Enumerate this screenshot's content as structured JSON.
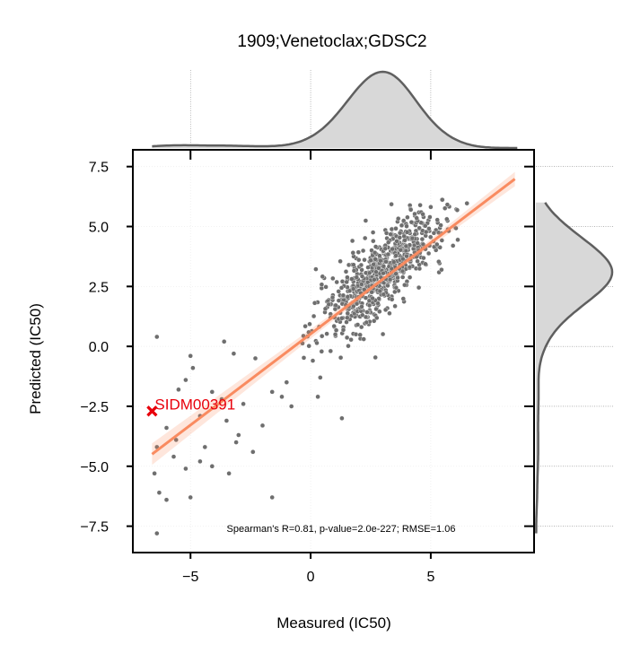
{
  "chart_data": {
    "type": "scatter",
    "title": "1909;Venetoclax;GDSC2",
    "xlabel": "Measured (IC50)",
    "ylabel": "Predicted (IC50)",
    "xlim": [
      -7.4,
      9.3
    ],
    "ylim": [
      -8.6,
      8.2
    ],
    "x_ticks": [
      -5,
      0,
      5
    ],
    "x_tick_labels": [
      "−5",
      "0",
      "5"
    ],
    "y_ticks": [
      7.5,
      5.0,
      2.5,
      0.0,
      -2.5,
      -5.0,
      -7.5
    ],
    "y_tick_labels": [
      "7.5",
      "5.0",
      "2.5",
      "0.0",
      "−2.5",
      "−5.0",
      "−7.5"
    ],
    "grid": true,
    "annotation": "Spearman's R=0.81, p-value=2.0e-227; RMSE=1.06",
    "regression": {
      "slope": 0.76,
      "intercept": 0.52,
      "x_range": [
        -6.6,
        8.5
      ],
      "color": "#f98b60"
    },
    "highlight": {
      "label": "SIDM00391",
      "x": -6.6,
      "y": -2.7,
      "color": "#e8000b"
    },
    "point_color": "#6e6e6e",
    "density_color": "#5f5f5f",
    "density_fill": "#d8d8d8",
    "outlier_points": [
      [
        -6.4,
        0.4
      ],
      [
        -5.0,
        -0.4
      ],
      [
        -4.9,
        -0.9
      ],
      [
        -3.6,
        0.2
      ],
      [
        -3.2,
        -0.3
      ],
      [
        -2.3,
        -0.5
      ],
      [
        -5.2,
        -1.4
      ],
      [
        -5.5,
        -1.8
      ],
      [
        -4.1,
        -1.9
      ],
      [
        -3.7,
        -2.2
      ],
      [
        -2.8,
        -2.4
      ],
      [
        -1.6,
        -1.9
      ],
      [
        -1.2,
        -2.1
      ],
      [
        -0.8,
        -2.5
      ],
      [
        -4.6,
        -2.9
      ],
      [
        -3.5,
        -3.1
      ],
      [
        -2.0,
        -3.3
      ],
      [
        -6.0,
        -3.4
      ],
      [
        -5.6,
        -3.9
      ],
      [
        -4.4,
        -4.2
      ],
      [
        -3.1,
        -4.0
      ],
      [
        -6.4,
        -4.2
      ],
      [
        -5.7,
        -4.6
      ],
      [
        -4.6,
        -4.8
      ],
      [
        -4.1,
        -5.0
      ],
      [
        -5.2,
        -5.1
      ],
      [
        -3.4,
        -5.3
      ],
      [
        -6.5,
        -5.3
      ],
      [
        -6.3,
        -6.1
      ],
      [
        -5.0,
        -6.3
      ],
      [
        -6.0,
        -6.4
      ],
      [
        -1.6,
        -6.3
      ],
      [
        -6.4,
        -7.8
      ],
      [
        1.3,
        -3.0
      ],
      [
        0.3,
        -2.1
      ],
      [
        -3.0,
        -3.7
      ],
      [
        -2.4,
        -4.4
      ],
      [
        0.4,
        -1.3
      ],
      [
        -1.0,
        -1.5
      ]
    ],
    "cluster": {
      "n": 720,
      "x_mean": 3.0,
      "x_sd": 1.35,
      "slope": 0.82,
      "intercept": 0.65,
      "resid_sd": 0.82,
      "seed": 7
    }
  }
}
